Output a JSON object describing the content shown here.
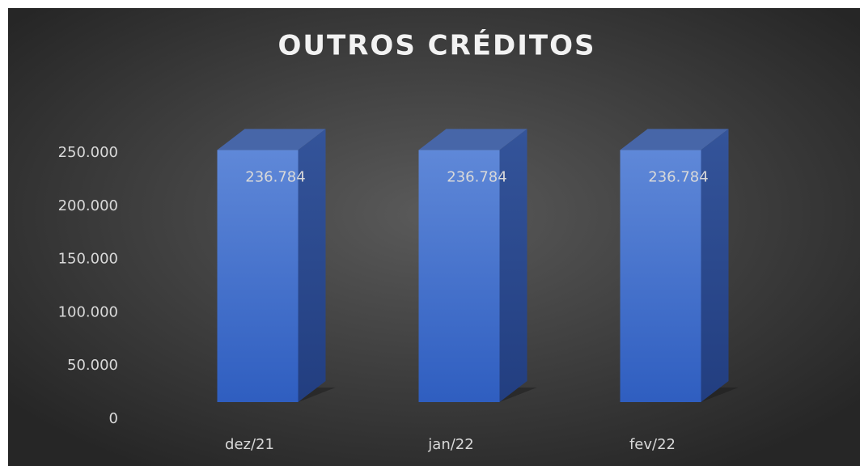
{
  "chart_data": {
    "type": "bar3d",
    "title": "OUTROS CRÉDITOS",
    "categories": [
      "dez/21",
      "jan/22",
      "fev/22"
    ],
    "values": [
      236784,
      236784,
      236784
    ],
    "value_labels": [
      "236.784",
      "236.784",
      "236.784"
    ],
    "color": "#4472c4",
    "ylim": [
      0,
      250000
    ],
    "yticks": [
      0,
      {
        "value": 50000,
        "label": "50.000"
      },
      {
        "value": 100000,
        "label": "100.000"
      },
      {
        "value": 150000,
        "label": "150.000"
      },
      {
        "value": 200000,
        "label": "200.000"
      },
      {
        "value": 250000,
        "label": "250.000"
      }
    ]
  }
}
